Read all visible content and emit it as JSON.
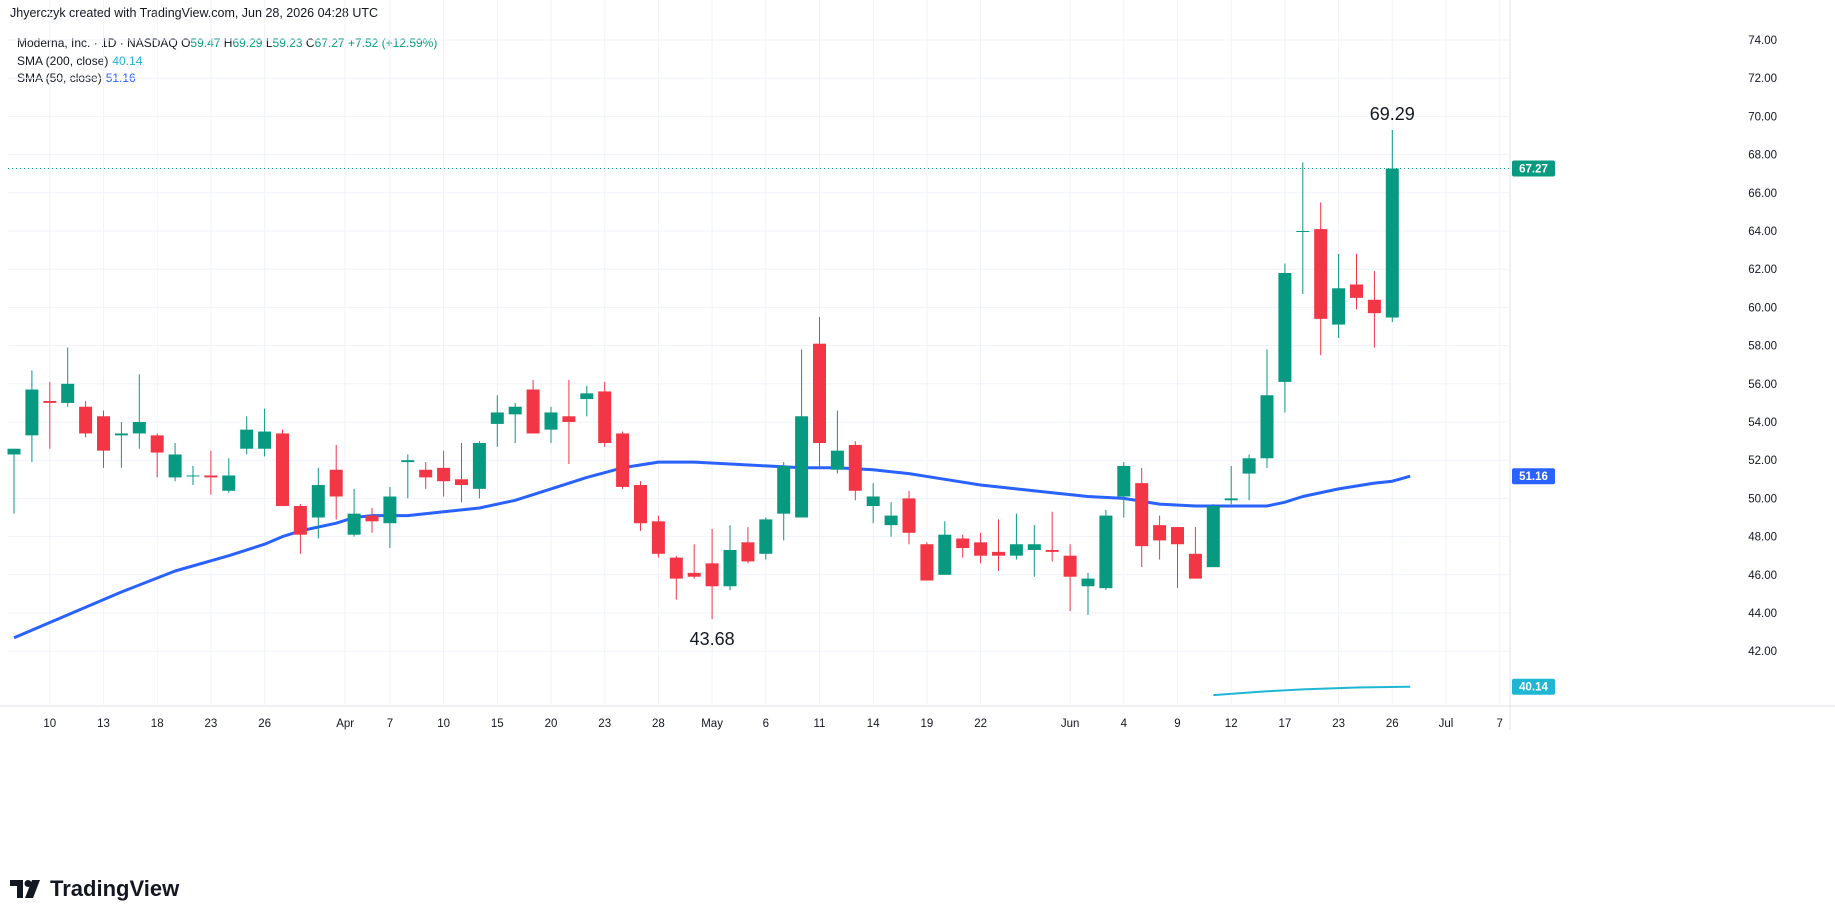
{
  "header": {
    "text": "Jhyerczyk created with TradingView.com, Jun 28, 2026 04:28 UTC"
  },
  "legend": {
    "symbol": "Moderna, Inc. · 1D · NASDAQ",
    "o_label": "O",
    "o_value": "59.47",
    "h_label": "H",
    "h_value": "69.29",
    "l_label": "L",
    "l_value": "59.23",
    "c_label": "C",
    "c_value": "67.27",
    "change": "+7.52 (+12.59%)",
    "sma200_label": "SMA (200, close)",
    "sma200_value": "40.14",
    "sma50_label": "SMA (50, close)",
    "sma50_value": "51.16"
  },
  "footer": {
    "brand": "TradingView"
  },
  "colors": {
    "up": "#089981",
    "down": "#f23645",
    "sma50": "#2962ff",
    "sma200": "#1fb6d4",
    "grid": "#f0f3fa"
  },
  "chart_data": {
    "type": "candlestick",
    "ylim": [
      40,
      75
    ],
    "y_ticks": [
      "42.00",
      "44.00",
      "46.00",
      "48.00",
      "50.00",
      "52.00",
      "54.00",
      "56.00",
      "58.00",
      "60.00",
      "62.00",
      "64.00",
      "66.00",
      "68.00",
      "70.00",
      "72.00",
      "74.00"
    ],
    "x_ticks": [
      {
        "label": "10",
        "i": 2
      },
      {
        "label": "13",
        "i": 5
      },
      {
        "label": "18",
        "i": 8
      },
      {
        "label": "23",
        "i": 11
      },
      {
        "label": "26",
        "i": 14
      },
      {
        "label": "Apr",
        "i": 18.5
      },
      {
        "label": "7",
        "i": 21
      },
      {
        "label": "10",
        "i": 24
      },
      {
        "label": "15",
        "i": 27
      },
      {
        "label": "20",
        "i": 30
      },
      {
        "label": "23",
        "i": 33
      },
      {
        "label": "28",
        "i": 36
      },
      {
        "label": "May",
        "i": 39
      },
      {
        "label": "6",
        "i": 42
      },
      {
        "label": "11",
        "i": 45
      },
      {
        "label": "14",
        "i": 48
      },
      {
        "label": "19",
        "i": 51
      },
      {
        "label": "22",
        "i": 54
      },
      {
        "label": "Jun",
        "i": 59
      },
      {
        "label": "4",
        "i": 62
      },
      {
        "label": "9",
        "i": 65
      },
      {
        "label": "12",
        "i": 68
      },
      {
        "label": "17",
        "i": 71
      },
      {
        "label": "23",
        "i": 74
      },
      {
        "label": "26",
        "i": 77
      },
      {
        "label": "Jul",
        "i": 80
      },
      {
        "label": "7",
        "i": 83
      }
    ],
    "candles": [
      [
        52.3,
        52.6,
        49.2,
        52.6
      ],
      [
        53.3,
        56.7,
        51.9,
        55.7
      ],
      [
        55.1,
        56.1,
        52.6,
        55.0
      ],
      [
        55.0,
        57.9,
        54.8,
        56.0
      ],
      [
        54.8,
        55.1,
        53.2,
        53.4
      ],
      [
        54.3,
        54.6,
        51.6,
        52.5
      ],
      [
        53.3,
        54.0,
        51.6,
        53.4
      ],
      [
        53.4,
        56.5,
        52.6,
        54.0
      ],
      [
        53.3,
        53.4,
        51.1,
        52.4
      ],
      [
        51.1,
        52.9,
        50.9,
        52.3
      ],
      [
        51.2,
        51.7,
        50.7,
        51.2
      ],
      [
        51.2,
        52.5,
        50.2,
        51.1
      ],
      [
        50.4,
        52.1,
        50.3,
        51.2
      ],
      [
        52.6,
        54.3,
        52.3,
        53.6
      ],
      [
        52.6,
        54.7,
        52.2,
        53.5
      ],
      [
        53.4,
        53.6,
        49.7,
        49.6
      ],
      [
        49.6,
        49.7,
        47.1,
        48.1
      ],
      [
        49.0,
        51.6,
        47.9,
        50.7
      ],
      [
        51.5,
        52.8,
        48.9,
        50.1
      ],
      [
        48.1,
        50.5,
        48.0,
        49.2
      ],
      [
        49.1,
        49.5,
        48.2,
        48.8
      ],
      [
        48.7,
        50.6,
        47.4,
        50.1
      ],
      [
        51.9,
        52.3,
        50.0,
        52.0
      ],
      [
        51.5,
        51.9,
        50.5,
        51.1
      ],
      [
        51.6,
        52.5,
        50.1,
        50.9
      ],
      [
        51.0,
        52.9,
        49.8,
        50.7
      ],
      [
        50.5,
        53.0,
        50.0,
        52.9
      ],
      [
        53.9,
        55.4,
        52.7,
        54.5
      ],
      [
        54.4,
        55.0,
        52.9,
        54.8
      ],
      [
        55.7,
        56.2,
        53.4,
        53.4
      ],
      [
        53.6,
        54.8,
        52.9,
        54.5
      ],
      [
        54.3,
        56.2,
        51.8,
        54.0
      ],
      [
        55.2,
        55.9,
        54.3,
        55.5
      ],
      [
        55.6,
        56.1,
        52.7,
        52.9
      ],
      [
        53.4,
        53.5,
        50.5,
        50.6
      ],
      [
        50.7,
        50.9,
        48.3,
        48.7
      ],
      [
        48.8,
        49.1,
        46.9,
        47.1
      ],
      [
        46.9,
        47.0,
        44.7,
        45.8
      ],
      [
        46.1,
        47.6,
        45.8,
        45.9
      ],
      [
        46.6,
        48.4,
        43.68,
        45.4
      ],
      [
        45.4,
        48.6,
        45.2,
        47.3
      ],
      [
        47.7,
        48.5,
        46.6,
        46.7
      ],
      [
        47.1,
        49.0,
        46.8,
        48.9
      ],
      [
        49.2,
        51.9,
        47.8,
        51.7
      ],
      [
        49.0,
        57.8,
        49.0,
        54.3
      ],
      [
        58.1,
        59.5,
        51.6,
        52.9
      ],
      [
        51.5,
        54.6,
        51.3,
        52.5
      ],
      [
        52.8,
        53.0,
        49.9,
        50.4
      ],
      [
        49.6,
        50.8,
        48.7,
        50.1
      ],
      [
        48.6,
        49.8,
        48.0,
        49.1
      ],
      [
        50.0,
        50.4,
        47.6,
        48.2
      ],
      [
        47.6,
        47.7,
        45.7,
        45.7
      ],
      [
        46.0,
        48.8,
        46.0,
        48.1
      ],
      [
        47.9,
        48.1,
        46.9,
        47.4
      ],
      [
        47.7,
        48.2,
        46.6,
        47.0
      ],
      [
        47.2,
        48.9,
        46.2,
        47.0
      ],
      [
        47.0,
        49.2,
        46.8,
        47.6
      ],
      [
        47.3,
        48.6,
        45.9,
        47.6
      ],
      [
        47.3,
        49.3,
        46.7,
        47.2
      ],
      [
        47.0,
        47.6,
        44.1,
        45.9
      ],
      [
        45.4,
        46.1,
        43.9,
        45.8
      ],
      [
        45.3,
        49.4,
        45.2,
        49.1
      ],
      [
        50.1,
        51.9,
        49.0,
        51.7
      ],
      [
        50.8,
        51.6,
        46.4,
        47.5
      ],
      [
        48.6,
        49.1,
        46.8,
        47.8
      ],
      [
        48.5,
        48.5,
        45.3,
        47.6
      ],
      [
        47.1,
        48.5,
        45.8,
        45.8
      ],
      [
        46.4,
        49.7,
        46.4,
        49.6
      ],
      [
        49.9,
        51.7,
        49.7,
        50.0
      ],
      [
        51.3,
        52.3,
        49.9,
        52.1
      ],
      [
        52.1,
        57.8,
        51.6,
        55.4
      ],
      [
        56.1,
        62.3,
        54.5,
        61.8
      ],
      [
        64.0,
        67.6,
        60.7,
        64.0
      ],
      [
        64.1,
        65.5,
        57.5,
        59.4
      ],
      [
        59.1,
        62.8,
        58.4,
        61.0
      ],
      [
        61.2,
        62.8,
        59.9,
        60.5
      ],
      [
        60.4,
        61.9,
        57.9,
        59.7
      ],
      [
        59.47,
        69.29,
        59.23,
        67.27
      ]
    ],
    "sma50": [
      [
        0,
        42.7
      ],
      [
        3,
        43.9
      ],
      [
        6,
        45.1
      ],
      [
        9,
        46.2
      ],
      [
        12,
        47.0
      ],
      [
        14,
        47.6
      ],
      [
        15,
        48.0
      ],
      [
        16,
        48.3
      ],
      [
        18,
        48.7
      ],
      [
        19,
        49.0
      ],
      [
        20,
        49.1
      ],
      [
        22,
        49.1
      ],
      [
        24,
        49.3
      ],
      [
        26,
        49.5
      ],
      [
        28,
        49.9
      ],
      [
        30,
        50.5
      ],
      [
        32,
        51.1
      ],
      [
        34,
        51.6
      ],
      [
        36,
        51.9
      ],
      [
        38,
        51.9
      ],
      [
        40,
        51.8
      ],
      [
        42,
        51.7
      ],
      [
        44,
        51.6
      ],
      [
        46,
        51.6
      ],
      [
        48,
        51.5
      ],
      [
        50,
        51.3
      ],
      [
        52,
        51.0
      ],
      [
        54,
        50.7
      ],
      [
        56,
        50.5
      ],
      [
        58,
        50.3
      ],
      [
        60,
        50.1
      ],
      [
        62,
        50.0
      ],
      [
        64,
        49.7
      ],
      [
        66,
        49.6
      ],
      [
        68,
        49.6
      ],
      [
        70,
        49.6
      ],
      [
        71,
        49.8
      ],
      [
        72,
        50.1
      ],
      [
        74,
        50.5
      ],
      [
        76,
        50.8
      ],
      [
        77,
        50.9
      ],
      [
        78,
        51.16
      ]
    ],
    "sma200": [
      [
        67,
        39.7
      ],
      [
        70,
        39.9
      ],
      [
        72,
        40.0
      ],
      [
        75,
        40.1
      ],
      [
        78,
        40.14
      ]
    ],
    "last_close": "67.27",
    "last_sma50": "51.16",
    "last_sma200": "40.14",
    "high_annotation": "69.29",
    "low_annotation": "43.68"
  }
}
